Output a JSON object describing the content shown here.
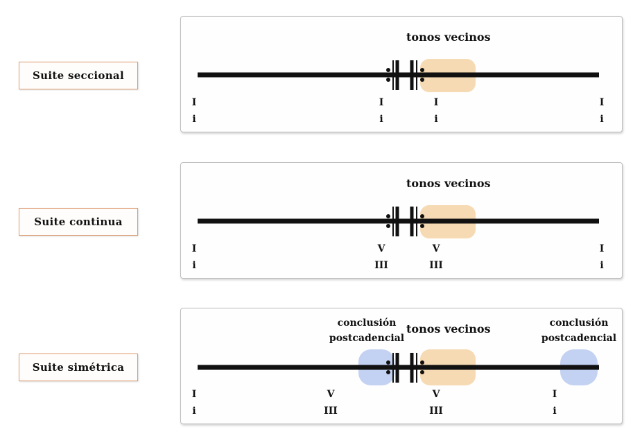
{
  "colors": {
    "neighbor_tones": "#f5d4a6",
    "postcadential": "#b9c9f0",
    "label_border": "#dc9a6e"
  },
  "rows": [
    {
      "label": "Suite seccional",
      "neighbor_label": "tonos vecinos",
      "marks": [
        {
          "top": "I",
          "bottom": "i"
        },
        {
          "top": "I",
          "bottom": "i"
        },
        {
          "top": "I",
          "bottom": "i"
        },
        {
          "top": "I",
          "bottom": "i"
        }
      ]
    },
    {
      "label": "Suite continua",
      "neighbor_label": "tonos vecinos",
      "marks": [
        {
          "top": "I",
          "bottom": "i"
        },
        {
          "top": "V",
          "bottom": "III"
        },
        {
          "top": "V",
          "bottom": "III"
        },
        {
          "top": "I",
          "bottom": "i"
        }
      ]
    },
    {
      "label": "Suite simétrica",
      "neighbor_label": "tonos vecinos",
      "postcadential_label_left": "conclusión postcadencial",
      "postcadential_label_right": "conclusión postcadencial",
      "marks": [
        {
          "top": "I",
          "bottom": "i"
        },
        {
          "top": "V",
          "bottom": "III"
        },
        {
          "top": "V",
          "bottom": "III"
        },
        {
          "top": "I",
          "bottom": "i"
        }
      ]
    }
  ]
}
